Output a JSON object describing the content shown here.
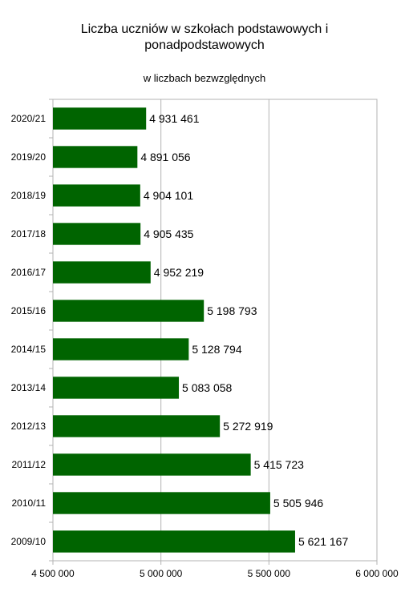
{
  "chart_data": {
    "type": "bar",
    "orientation": "horizontal",
    "title_lines": [
      "Liczba uczniów w szkołach podstawowych i",
      "ponadpodstawowych"
    ],
    "subtitle": "w liczbach bezwzględnych",
    "categories": [
      "2020/21",
      "2019/20",
      "2018/19",
      "2017/18",
      "2016/17",
      "2015/16",
      "2014/15",
      "2013/14",
      "2012/13",
      "2011/12",
      "2010/11",
      "2009/10"
    ],
    "values": [
      4931461,
      4891056,
      4904101,
      4905435,
      4952219,
      5198793,
      5128794,
      5083058,
      5272919,
      5415723,
      5505946,
      5621167
    ],
    "value_labels": [
      "4 931 461",
      "4 891 056",
      "4 904 101",
      "4 905 435",
      "4 952 219",
      "5 198 793",
      "5 128 794",
      "5 083 058",
      "5 272 919",
      "5 415 723",
      "5 505 946",
      "5 621 167"
    ],
    "xlim": [
      4500000,
      6000000
    ],
    "x_ticks": [
      4500000,
      5000000,
      5500000,
      6000000
    ],
    "x_tick_labels": [
      "4 500 000",
      "5 000 000",
      "5 500 000",
      "6 000 000"
    ],
    "bar_color": "#006400",
    "grid": true,
    "legend": "none"
  }
}
